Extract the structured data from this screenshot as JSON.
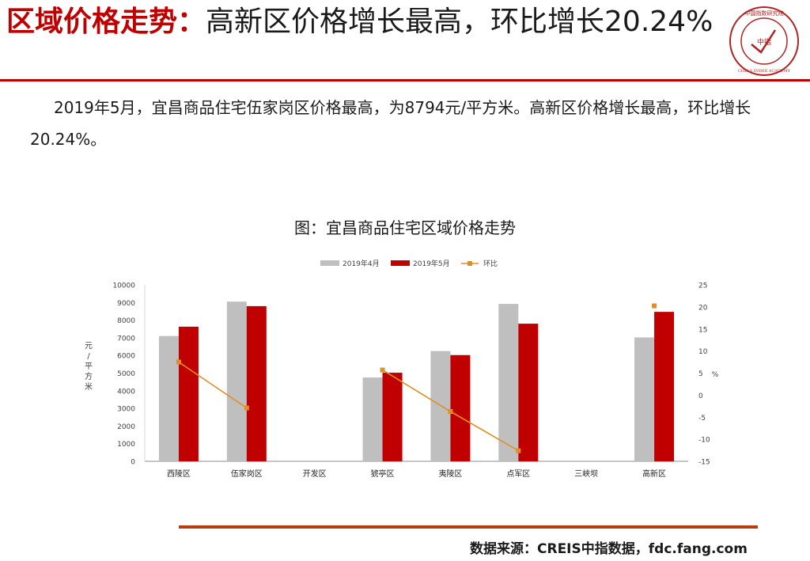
{
  "header": {
    "title_highlight": "区域价格走势：",
    "title_rest": "高新区价格增长最高，环比增长20.24%"
  },
  "logo": {
    "center_text": "中指",
    "ring_text": "中国指数研究院",
    "ring_text_en": "CHINA INDEX ACADEMY",
    "accent_color": "#b22222"
  },
  "body": {
    "paragraph": "2019年5月，宜昌商品住宅伍家岗区价格最高，为8794元/平方米。高新区价格增长最高，环比增长20.24%。"
  },
  "footer": {
    "source": "数据来源：CREIS中指数据，fdc.fang.com"
  },
  "chart_data": {
    "type": "bar",
    "title": "图：宜昌商品住宅区域价格走势",
    "categories": [
      "西陵区",
      "伍家岗区",
      "开发区",
      "猇亭区",
      "夷陵区",
      "点军区",
      "三峡坝",
      "高新区"
    ],
    "series": [
      {
        "name": "2019年4月",
        "kind": "bar",
        "axis": "left",
        "color": "#bfbfbf",
        "values": [
          7100,
          9050,
          null,
          4750,
          6250,
          8920,
          null,
          7020
        ]
      },
      {
        "name": "2019年5月",
        "kind": "bar",
        "axis": "left",
        "color": "#c00000",
        "values": [
          7630,
          8794,
          null,
          5020,
          6020,
          7800,
          null,
          8470
        ]
      },
      {
        "name": "环比",
        "kind": "line",
        "axis": "right",
        "color": "#e08e28",
        "values": [
          7.5,
          -2.9,
          null,
          5.7,
          -3.7,
          -12.6,
          null,
          20.24
        ]
      }
    ],
    "ylabel": "元/平方米",
    "y2label": "%",
    "ylim": [
      0,
      10000
    ],
    "y_ticks": [
      0,
      1000,
      2000,
      3000,
      4000,
      5000,
      6000,
      7000,
      8000,
      9000,
      10000
    ],
    "y2lim": [
      -15,
      25
    ],
    "y2_ticks": [
      -15,
      -10,
      -5,
      0,
      5,
      10,
      15,
      20,
      25
    ],
    "legend_position": "top-center",
    "grid": false
  }
}
